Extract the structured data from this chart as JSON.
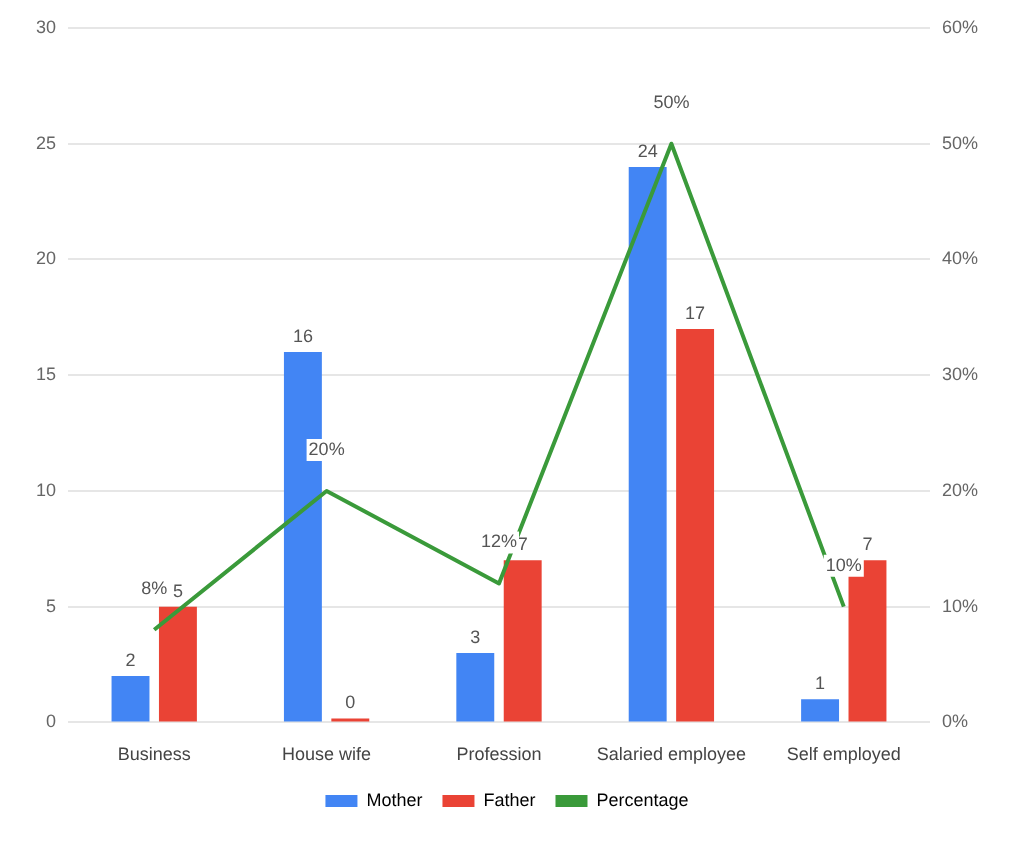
{
  "chart_data": {
    "type": "bar",
    "categories": [
      "Business",
      "House wife",
      "Profession",
      "Salaried employee",
      "Self employed"
    ],
    "series": [
      {
        "name": "Mother",
        "color": "#4285f4",
        "values": [
          2,
          16,
          3,
          24,
          1
        ],
        "value_labels": [
          "2",
          "16",
          "3",
          "24",
          "1"
        ]
      },
      {
        "name": "Father",
        "color": "#ea4335",
        "values": [
          5,
          0,
          7,
          17,
          7
        ],
        "value_labels": [
          "5",
          "0",
          "7",
          "17",
          "7"
        ]
      },
      {
        "name": "Percentage",
        "type": "line",
        "axis": "y2",
        "color": "#3a9a3a",
        "values": [
          8,
          20,
          12,
          50,
          10
        ],
        "value_labels": [
          "8%",
          "20%",
          "12%",
          "50%",
          "10%"
        ]
      }
    ],
    "ylim": [
      0,
      30
    ],
    "yticks": [
      0,
      5,
      10,
      15,
      20,
      25,
      30
    ],
    "y2lim": [
      0,
      60
    ],
    "y2ticks": [
      {
        "value": 0,
        "label": "0%"
      },
      {
        "value": 10,
        "label": "10%"
      },
      {
        "value": 20,
        "label": "20%"
      },
      {
        "value": 30,
        "label": "30%"
      },
      {
        "value": 40,
        "label": "40%"
      },
      {
        "value": 50,
        "label": "50%"
      },
      {
        "value": 60,
        "label": "60%"
      }
    ],
    "grid": "y",
    "legend": "bottom",
    "marker": "none"
  }
}
